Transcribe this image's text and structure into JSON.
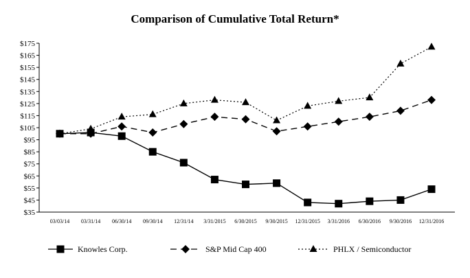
{
  "chart_data": {
    "type": "line",
    "title": "Comparison of Cumulative Total Return*",
    "xlabel": "",
    "ylabel": "",
    "ylim": [
      35,
      175
    ],
    "yticks": [
      "$175",
      "$165",
      "$155",
      "$145",
      "$135",
      "$125",
      "$115",
      "$105",
      "$95",
      "$85",
      "$75",
      "$65",
      "$55",
      "$45",
      "$35"
    ],
    "ytick_values": [
      175,
      165,
      155,
      145,
      135,
      125,
      115,
      105,
      95,
      85,
      75,
      65,
      55,
      45,
      35
    ],
    "categories": [
      "03/03/14",
      "03/31/14",
      "06/30/14",
      "09/30/14",
      "12/31/14",
      "3/31/2015",
      "6/30/2015",
      "9/30/2015",
      "12/31/2015",
      "3/31/2016",
      "6/30/2016",
      "9/30/2016",
      "12/31/2016"
    ],
    "grid": false,
    "legend_position": "bottom",
    "series": [
      {
        "name": "Knowles Corp.",
        "values": [
          100,
          101,
          98,
          85,
          76,
          62,
          58,
          59,
          43,
          42,
          44,
          45,
          54
        ],
        "line_style": "solid",
        "marker": "square"
      },
      {
        "name": "S&P Mid Cap 400",
        "values": [
          100,
          100,
          106,
          101,
          108,
          114,
          112,
          102,
          106,
          110,
          114,
          119,
          128
        ],
        "line_style": "dashed",
        "marker": "diamond"
      },
      {
        "name": "PHLX / Semiconductor",
        "values": [
          100,
          104,
          114,
          116,
          125,
          128,
          126,
          111,
          123,
          127,
          130,
          158,
          172
        ],
        "line_style": "dotted",
        "marker": "triangle"
      }
    ]
  }
}
